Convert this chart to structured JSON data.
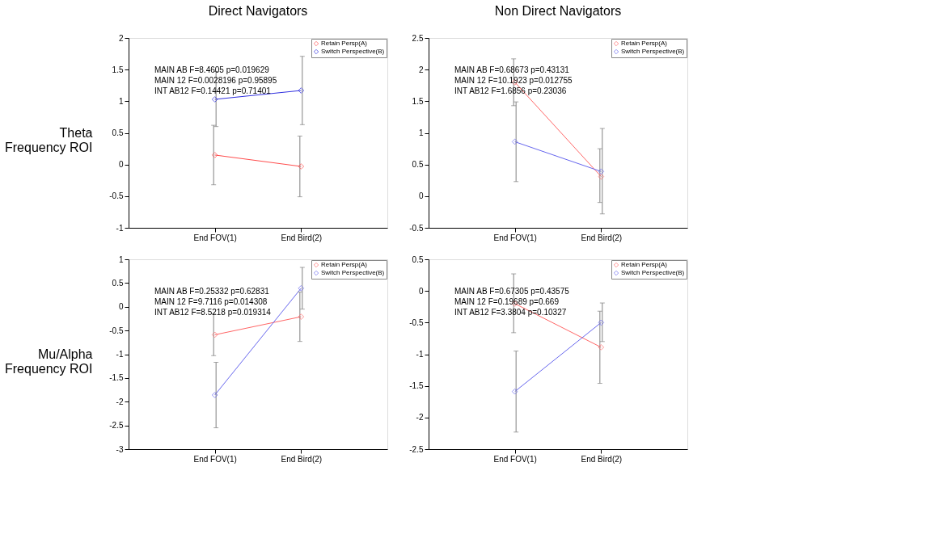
{
  "chart_data": [
    {
      "type": "line",
      "title": "Direct Navigators",
      "ylabel": "Theta Frequency ROI",
      "categories": [
        "End FOV(1)",
        "End Bird(2)"
      ],
      "ylim": [
        -1,
        2
      ],
      "yticks": [
        -1,
        -0.5,
        0,
        0.5,
        1,
        1.5,
        2
      ],
      "marker": "diamond",
      "legend": "top right",
      "grid": false,
      "series": [
        {
          "name": "Retain Persp(A)",
          "color": "#ff4d4d",
          "values": [
            0.15,
            -0.03
          ],
          "errors": [
            [
              -0.32,
              0.62
            ],
            [
              -0.51,
              0.45
            ]
          ]
        },
        {
          "name": "Switch Perspective(B)",
          "color": "#3030e0",
          "values": [
            1.03,
            1.17
          ],
          "errors": [
            [
              0.6,
              1.47
            ],
            [
              0.63,
              1.71
            ]
          ]
        }
      ],
      "annotations": [
        "MAIN AB F=8.4605 p=0.019629",
        "MAIN 12 F=0.0028196 p=0.95895",
        "INT  AB12 F=0.14421 p=0.71401"
      ]
    },
    {
      "type": "line",
      "title": "Non Direct Navigators",
      "categories": [
        "End FOV(1)",
        "End Bird(2)"
      ],
      "ylim": [
        -0.5,
        2.5
      ],
      "yticks": [
        -0.5,
        0,
        0.5,
        1,
        1.5,
        2,
        2.5
      ],
      "marker": "diamond",
      "legend": "top right",
      "grid": false,
      "series": [
        {
          "name": "Retain Persp(A)",
          "color": "#ff6666",
          "values": [
            1.8,
            0.31
          ],
          "errors": [
            [
              1.43,
              2.17
            ],
            [
              -0.1,
              0.75
            ]
          ]
        },
        {
          "name": "Switch Perspective(B)",
          "color": "#6666ee",
          "values": [
            0.86,
            0.39
          ],
          "errors": [
            [
              0.23,
              1.49
            ],
            [
              -0.28,
              1.07
            ]
          ]
        }
      ],
      "annotations": [
        "MAIN AB F=0.68673 p=0.43131",
        "MAIN 12 F=10.1923 p=0.012755",
        "INT  AB12 F=1.6856 p=0.23036"
      ]
    },
    {
      "type": "line",
      "ylabel": "Mu/Alpha Frequency ROI",
      "categories": [
        "End FOV(1)",
        "End Bird(2)"
      ],
      "ylim": [
        -3,
        1
      ],
      "yticks": [
        -3,
        -2.5,
        -2,
        -1.5,
        -1,
        -0.5,
        0,
        0.5,
        1
      ],
      "marker": "diamond",
      "legend": "top right",
      "grid": false,
      "series": [
        {
          "name": "Retain Persp(A)",
          "color": "#ff6666",
          "values": [
            -0.59,
            -0.21
          ],
          "errors": [
            [
              -1.03,
              -0.15
            ],
            [
              -0.73,
              0.31
            ]
          ]
        },
        {
          "name": "Switch Perspective(B)",
          "color": "#6666ee",
          "values": [
            -1.86,
            0.39
          ],
          "errors": [
            [
              -2.55,
              -1.17
            ],
            [
              -0.05,
              0.83
            ]
          ]
        }
      ],
      "annotations": [
        "MAIN AB F=0.25332 p=0.62831",
        "MAIN 12 F=9.7116 p=0.014308",
        "INT  AB12 F=8.5218 p=0.019314"
      ]
    },
    {
      "type": "line",
      "categories": [
        "End FOV(1)",
        "End Bird(2)"
      ],
      "ylim": [
        -2.5,
        0.5
      ],
      "yticks": [
        -2.5,
        -2,
        -1.5,
        -1,
        -0.5,
        0,
        0.5
      ],
      "marker": "diamond",
      "legend": "top right",
      "grid": false,
      "series": [
        {
          "name": "Retain Persp(A)",
          "color": "#ff6666",
          "values": [
            -0.2,
            -0.89
          ],
          "errors": [
            [
              -0.66,
              0.27
            ],
            [
              -1.46,
              -0.32
            ]
          ]
        },
        {
          "name": "Switch Perspective(B)",
          "color": "#6666ee",
          "values": [
            -1.59,
            -0.5
          ],
          "errors": [
            [
              -2.23,
              -0.95
            ],
            [
              -0.8,
              -0.19
            ]
          ]
        }
      ],
      "annotations": [
        "MAIN AB F=0.67305 p=0.43575",
        "MAIN 12 F=0.19689 p=0.669",
        "INT  AB12 F=3.3804 p=0.10327"
      ]
    }
  ]
}
